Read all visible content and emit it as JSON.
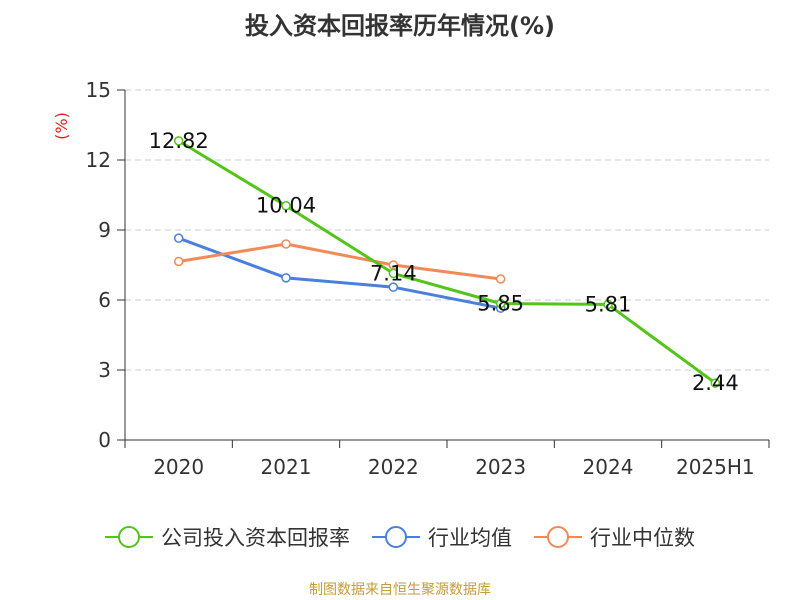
{
  "chart_data": {
    "type": "line",
    "title": "投入资本回报率历年情况(%)",
    "ylabel": "(%)",
    "xlabel": "",
    "categories": [
      "2020",
      "2021",
      "2022",
      "2023",
      "2024",
      "2025H1"
    ],
    "ylim": [
      0,
      15
    ],
    "yticks": [
      0,
      3,
      6,
      9,
      12,
      15
    ],
    "grid": true,
    "legend_position": "bottom",
    "series": [
      {
        "name": "公司投入资本回报率",
        "color": "#52c41a",
        "values": [
          12.82,
          10.04,
          7.14,
          5.85,
          5.81,
          2.44
        ],
        "labels": [
          "12.82",
          "10.04",
          "7.14",
          "5.85",
          "5.81",
          "2.44"
        ]
      },
      {
        "name": "行业均值",
        "color": "#4a7fdc",
        "values": [
          8.65,
          6.95,
          6.55,
          5.65,
          null,
          null
        ]
      },
      {
        "name": "行业中位数",
        "color": "#f28a57",
        "values": [
          7.65,
          8.4,
          7.5,
          6.9,
          null,
          null
        ]
      }
    ]
  },
  "source_text": "制图数据来自恒生聚源数据库",
  "colors": {
    "ylabel": "#e02020",
    "source": "#c79a3a",
    "grid": "#cccccc",
    "axis": "#333333"
  }
}
